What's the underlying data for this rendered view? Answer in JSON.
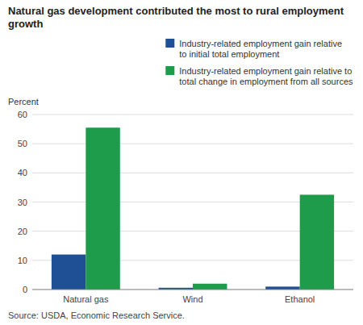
{
  "chart_data": {
    "type": "bar",
    "title": "Natural gas development contributed the most to rural employment growth",
    "ylabel": "Percent",
    "source": "Source: USDA, Economic Research Service.",
    "categories": [
      "Natural gas",
      "Wind",
      "Ethanol"
    ],
    "series": [
      {
        "name": "Industry-related employment gain relative\nto initial total employment",
        "color": "#1F5096",
        "values": [
          12.0,
          0.6,
          1.0
        ]
      },
      {
        "name": "Industry-related employment gain relative to\ntotal change in employment from all sources",
        "color": "#1E9B4B",
        "values": [
          55.5,
          2.0,
          32.5
        ]
      }
    ],
    "ylim": [
      0,
      60
    ],
    "yticks": [
      0,
      10,
      20,
      30,
      40,
      50,
      60
    ],
    "grid": true,
    "legend": "upper right"
  }
}
